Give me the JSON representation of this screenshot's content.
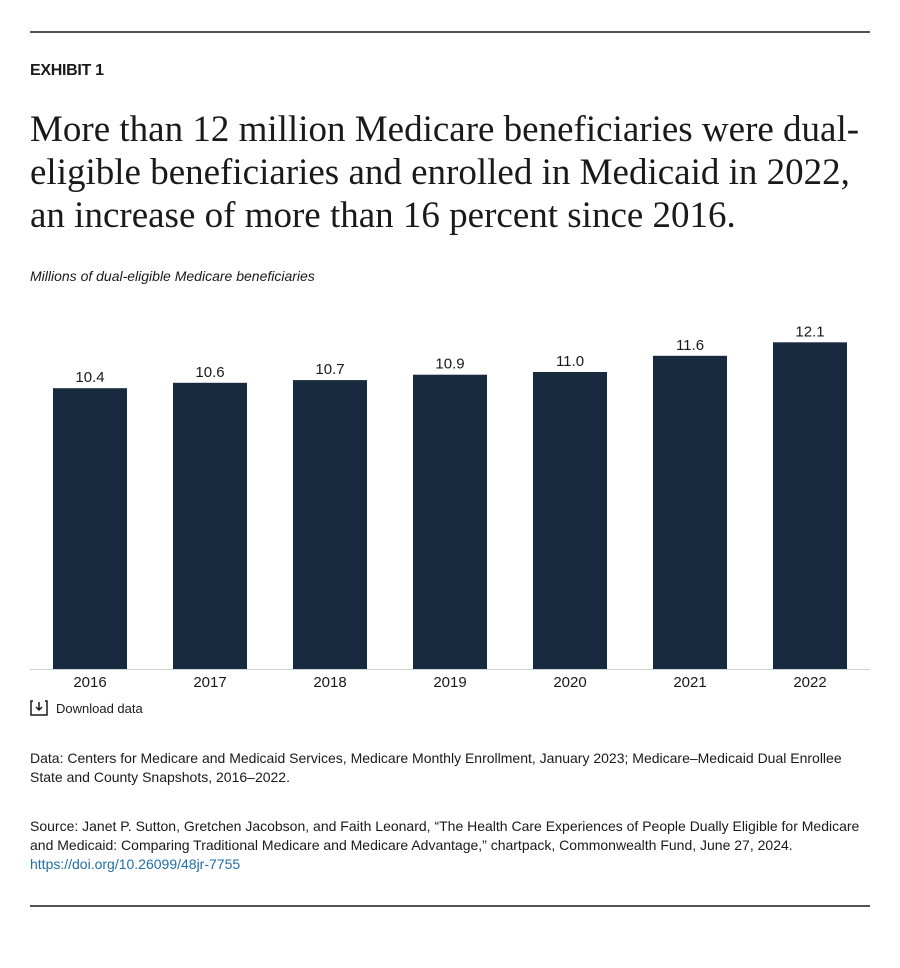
{
  "exhibit": "EXHIBIT 1",
  "chart_data": {
    "type": "bar",
    "title": "More than 12 million Medicare beneficiaries were dual-eligible beneficiaries and enrolled in Medicaid in 2022, an increase of more than 16 percent since 2016.",
    "y_label": "Millions of dual-eligible Medicare beneficiaries",
    "categories": [
      "2016",
      "2017",
      "2018",
      "2019",
      "2020",
      "2021",
      "2022"
    ],
    "values": [
      10.4,
      10.6,
      10.7,
      10.9,
      11.0,
      11.6,
      12.1
    ],
    "value_labels": [
      "10.4",
      "10.6",
      "10.7",
      "10.9",
      "11.0",
      "11.6",
      "12.1"
    ],
    "color": "#172a40"
  },
  "download_label": "Download data",
  "data_note": "Data: Centers for Medicare and Medicaid Services, Medicare Monthly Enrollment, January 2023; Medicare–Medicaid Dual Enrollee State and County Snapshots, 2016–2022.",
  "source_note": {
    "text": "Source: Janet P. Sutton, Gretchen Jacobson, and Faith Leonard, “The Health Care Experiences of People Dually Eligible for Medicare and Medicaid: Comparing Traditional Medicare and Medicare Advantage,” chartpack, Commonwealth Fund, June 27, 2024.",
    "link": "https://doi.org/10.26099/48jr-7755"
  }
}
